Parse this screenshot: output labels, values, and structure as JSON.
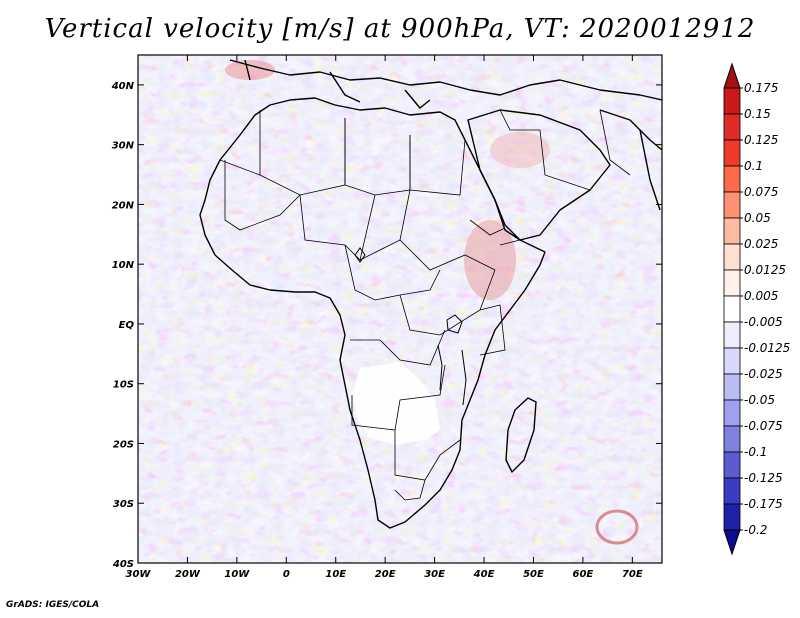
{
  "title": "Vertical velocity [m/s] at 900hPa, VT: 2020012912",
  "credit": "GrADS: IGES/COLA",
  "map": {
    "region": "Africa and surrounding oceans",
    "lon_range": [
      -30,
      76
    ],
    "lat_range": [
      -40,
      45
    ],
    "x_ticks": [
      "30W",
      "20W",
      "10W",
      "0",
      "10E",
      "20E",
      "30E",
      "40E",
      "50E",
      "60E",
      "70E"
    ],
    "y_ticks": [
      "40N",
      "30N",
      "20N",
      "10N",
      "EQ",
      "10S",
      "20S",
      "30S",
      "40S"
    ]
  },
  "colorbar": {
    "levels": [
      "0.175",
      "0.15",
      "0.125",
      "0.1",
      "0.075",
      "0.05",
      "0.025",
      "0.0125",
      "0.005",
      "-0.005",
      "-0.0125",
      "-0.025",
      "-0.05",
      "-0.075",
      "-0.1",
      "-0.125",
      "-0.175",
      "-0.2"
    ],
    "colors": [
      "#a50f15",
      "#cb181d",
      "#de2d26",
      "#ef3b2c",
      "#fb6a4a",
      "#fc9272",
      "#fcbba1",
      "#fde0d2",
      "#fff0ea",
      "#ffffff",
      "#eeeeff",
      "#d8d8ff",
      "#bcbcf5",
      "#a0a0ee",
      "#8080e0",
      "#5c5cd0",
      "#3c3cc0",
      "#2020a8",
      "#0c0c90"
    ]
  }
}
